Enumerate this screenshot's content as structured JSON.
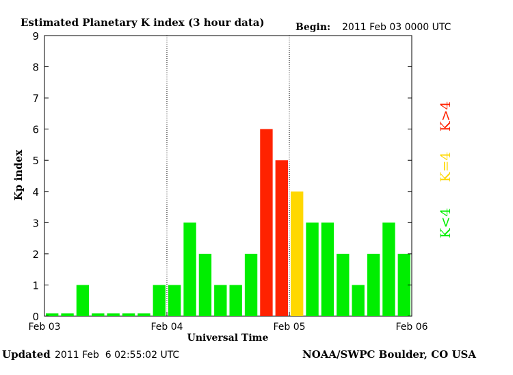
{
  "title": "Estimated Planetary K index (3 hour data)",
  "begin_label": "Begin:",
  "begin_value": "2011 Feb 03 0000 UTC",
  "updated_label": "Updated",
  "updated_value": "2011 Feb  6 02:55:02 UTC",
  "credit": "NOAA/SWPC Boulder, CO USA",
  "colors": {
    "low": "#00ee00",
    "equal": "#ffd800",
    "high": "#ff2200",
    "axis": "#000000"
  },
  "legend": [
    {
      "label": "K>4",
      "color": "#ff2200"
    },
    {
      "label": "K=4",
      "color": "#ffd800"
    },
    {
      "label": "K<4",
      "color": "#00ee00"
    }
  ],
  "chart_data": {
    "type": "bar",
    "title": "Estimated Planetary K index (3 hour data)",
    "xlabel": "Universal Time",
    "ylabel": "Kp index",
    "ylim": [
      0,
      9
    ],
    "yticks": [
      "0",
      "1",
      "2",
      "3",
      "4",
      "5",
      "6",
      "7",
      "8",
      "9"
    ],
    "xticks": [
      "Feb 03",
      "Feb 04",
      "Feb 05",
      "Feb 06"
    ],
    "day_dividers": [
      "Feb 04",
      "Feb 05"
    ],
    "values": [
      0,
      0,
      1,
      0,
      0,
      0,
      0,
      1,
      1,
      3,
      2,
      1,
      1,
      2,
      6,
      5,
      4,
      3,
      3,
      2,
      1,
      2,
      3,
      2
    ],
    "color_rule": {
      "below_4": "#00ee00",
      "equal_4": "#ffd800",
      "above_4": "#ff2200"
    },
    "legend_position": "right"
  }
}
